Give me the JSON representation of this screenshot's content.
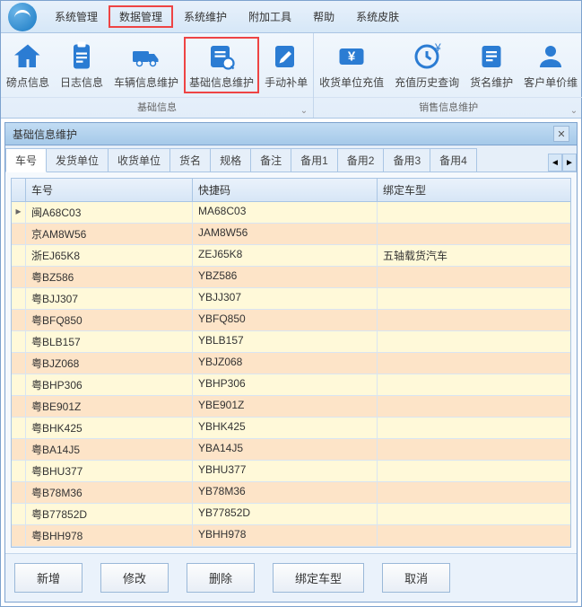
{
  "menu": {
    "items": [
      "系统管理",
      "数据管理",
      "系统维护",
      "附加工具",
      "帮助",
      "系统皮肤"
    ],
    "highlighted_index": 1
  },
  "ribbon": {
    "groups": [
      {
        "label": "基础信息",
        "items": [
          {
            "icon": "home",
            "label": "磅点信息"
          },
          {
            "icon": "clipboard",
            "label": "日志信息"
          },
          {
            "icon": "truck",
            "label": "车辆信息维护"
          },
          {
            "icon": "docs",
            "label": "基础信息维护",
            "highlighted": true
          },
          {
            "icon": "pencil",
            "label": "手动补单"
          }
        ]
      },
      {
        "label": "销售信息维护",
        "items": [
          {
            "icon": "money",
            "label": "收货单位充值"
          },
          {
            "icon": "history",
            "label": "充值历史查询"
          },
          {
            "icon": "tag",
            "label": "货名维护"
          },
          {
            "icon": "user",
            "label": "客户单价维"
          }
        ]
      }
    ]
  },
  "panel": {
    "title": "基础信息维护"
  },
  "tabs": {
    "items": [
      "车号",
      "发货单位",
      "收货单位",
      "货名",
      "规格",
      "备注",
      "备用1",
      "备用2",
      "备用3",
      "备用4"
    ],
    "active_index": 0
  },
  "table": {
    "columns": [
      "车号",
      "快捷码",
      "绑定车型"
    ],
    "rows": [
      {
        "marker": "▸",
        "cells": [
          "闽A68C03",
          "MA68C03",
          ""
        ]
      },
      {
        "marker": "",
        "cells": [
          "京AM8W56",
          "JAM8W56",
          ""
        ]
      },
      {
        "marker": "",
        "cells": [
          "浙EJ65K8",
          "ZEJ65K8",
          "五轴载货汽车"
        ]
      },
      {
        "marker": "",
        "cells": [
          "粤BZ586",
          "YBZ586",
          ""
        ]
      },
      {
        "marker": "",
        "cells": [
          "粤BJJ307",
          "YBJJ307",
          ""
        ]
      },
      {
        "marker": "",
        "cells": [
          "粤BFQ850",
          "YBFQ850",
          ""
        ]
      },
      {
        "marker": "",
        "cells": [
          "粤BLB157",
          "YBLB157",
          ""
        ]
      },
      {
        "marker": "",
        "cells": [
          "粤BJZ068",
          "YBJZ068",
          ""
        ]
      },
      {
        "marker": "",
        "cells": [
          "粤BHP306",
          "YBHP306",
          ""
        ]
      },
      {
        "marker": "",
        "cells": [
          "粤BE901Z",
          "YBE901Z",
          ""
        ]
      },
      {
        "marker": "",
        "cells": [
          "粤BHK425",
          "YBHK425",
          ""
        ]
      },
      {
        "marker": "",
        "cells": [
          "粤BA14J5",
          "YBA14J5",
          ""
        ]
      },
      {
        "marker": "",
        "cells": [
          "粤BHU377",
          "YBHU377",
          ""
        ]
      },
      {
        "marker": "",
        "cells": [
          "粤B78M36",
          "YB78M36",
          ""
        ]
      },
      {
        "marker": "",
        "cells": [
          "粤B77852D",
          "YB77852D",
          ""
        ]
      },
      {
        "marker": "",
        "cells": [
          "粤BHH978",
          "YBHH978",
          ""
        ]
      }
    ]
  },
  "buttons": {
    "items": [
      "新增",
      "修改",
      "删除",
      "绑定车型",
      "取消"
    ]
  }
}
